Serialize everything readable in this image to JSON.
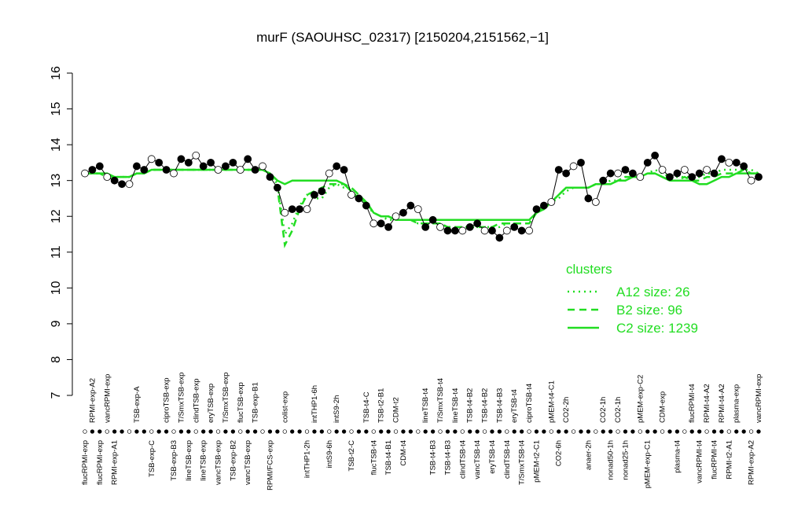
{
  "chart_data": {
    "type": "line",
    "title": "murF (SAOUHSC_02317) [2150204,2151562,−1]",
    "ylim": [
      7,
      16
    ],
    "yticks": [
      7,
      8,
      9,
      10,
      11,
      12,
      13,
      14,
      15,
      16
    ],
    "categories": [
      "flucRPMI-exp",
      "RPMI-exp-A2",
      "flucRPMI-exp",
      "vancRPMI-exp",
      "RPMI-exp-A1",
      null,
      null,
      "TSB-exp-A",
      null,
      "TSB-exp-C",
      null,
      "ciproTSB-exp",
      "TSB-exp-B3",
      "T/SmxTSB-exp",
      "lineTSB-exp",
      "clindTSB-exp",
      "lineTSB-exp",
      "eryTSB-exp",
      "vancTSB-exp",
      "T/SmxTSB-exp",
      "TSB-exp-B2",
      "flucTSB-exp",
      "vancTSB-exp",
      "TSB-exp-B1",
      null,
      "RPMI/FCS-exp",
      null,
      "colist-exp",
      null,
      null,
      "intTHP1-2h",
      "intTHP1-6h",
      null,
      "intS9-6h",
      "intS9-2h",
      null,
      "TSB-t2-C",
      null,
      "TSB-t4-C",
      "flucTSB-t4",
      "TSB-t2-B1",
      "TSB-t4-B1",
      "CDM-t2",
      "CDM-t4",
      null,
      null,
      "lineTSB-t4",
      "TSB-t4-B3",
      "T/SmxTSB-t4",
      "TSB-t4-B3",
      "lineTSB-t4",
      "clindTSB-t4",
      "TSB-t4-B2",
      "vancTSB-t4",
      "TSB-t4-B2",
      "eryTSB-t4",
      "TSB-t4-B3",
      "clindTSB-t4",
      "eryTSB-t4",
      "T/SmxTSB-t4",
      "ciproTSB-t4",
      "pMEM-t2-C1",
      null,
      "pMEM-t4-C1",
      "CO2-6h",
      "CO2-2h",
      null,
      null,
      "anaer-2h",
      null,
      "CO2-1h",
      "nonad50-1h",
      "CO2-1h",
      "nonad25-1h",
      null,
      "pMEM-exp-C2",
      "pMEM-exp-C1",
      null,
      "CDM-exp",
      null,
      "plasma-t4",
      null,
      "flucRPMI-t4",
      "vancRPMI-t4",
      "RPMI-t4-A2",
      "flucRPMI-t4",
      "RPMI-t4-A2",
      "RPMI-t2-A1",
      "plasma-exp",
      null,
      "RPMI-exp-A2",
      "vancRPMI-exp"
    ],
    "values": [
      13.2,
      13.3,
      13.4,
      13.1,
      13.0,
      12.9,
      12.9,
      13.4,
      13.3,
      13.6,
      13.5,
      13.3,
      13.2,
      13.6,
      13.5,
      13.7,
      13.4,
      13.5,
      13.3,
      13.4,
      13.5,
      13.3,
      13.6,
      13.3,
      13.4,
      13.1,
      12.8,
      12.1,
      12.2,
      12.2,
      12.2,
      12.6,
      12.7,
      13.2,
      13.4,
      13.3,
      12.6,
      12.5,
      12.3,
      11.8,
      11.8,
      11.7,
      12.0,
      12.1,
      12.3,
      12.2,
      11.7,
      11.9,
      11.7,
      11.6,
      11.6,
      11.6,
      11.7,
      11.8,
      11.6,
      11.6,
      11.4,
      11.6,
      11.7,
      11.6,
      11.6,
      12.2,
      12.3,
      12.4,
      13.3,
      13.2,
      13.4,
      13.5,
      12.5,
      12.4,
      13.0,
      13.2,
      13.2,
      13.3,
      13.2,
      13.1,
      13.5,
      13.7,
      13.3,
      13.1,
      13.2,
      13.3,
      13.1,
      13.2,
      13.3,
      13.2,
      13.6,
      13.5,
      13.5,
      13.4,
      13.0,
      13.1
    ],
    "color": "#000000",
    "legend_title": "clusters",
    "series": [
      {
        "name": "A12 size: 26",
        "style": "dotted",
        "color": "#22dd22",
        "values": [
          13.2,
          13.2,
          13.2,
          13.1,
          13.1,
          13.1,
          13.1,
          13.2,
          13.2,
          13.3,
          13.3,
          13.3,
          13.3,
          13.3,
          13.3,
          13.3,
          13.3,
          13.3,
          13.3,
          13.3,
          13.3,
          13.3,
          13.3,
          13.3,
          13.3,
          13.2,
          12.9,
          11.5,
          11.8,
          12.3,
          12.6,
          12.5,
          12.5,
          12.8,
          12.9,
          12.8,
          12.8,
          12.6,
          12.3,
          12.1,
          12.0,
          11.9,
          11.9,
          11.9,
          11.9,
          11.8,
          11.8,
          11.8,
          11.8,
          11.7,
          11.7,
          11.7,
          11.7,
          11.7,
          11.7,
          11.7,
          11.7,
          11.8,
          11.8,
          11.8,
          11.8,
          12.1,
          12.3,
          12.4,
          12.5,
          12.7,
          12.8,
          12.8,
          12.8,
          12.9,
          12.9,
          13.0,
          13.0,
          13.1,
          13.1,
          13.1,
          13.2,
          13.3,
          13.2,
          13.1,
          13.1,
          13.1,
          13.1,
          13.1,
          13.2,
          13.2,
          13.3,
          13.3,
          13.3,
          13.3,
          13.3,
          13.2
        ]
      },
      {
        "name": "B2 size: 96",
        "style": "dashed",
        "color": "#22dd22",
        "values": [
          13.2,
          13.2,
          13.2,
          13.1,
          13.1,
          13.1,
          13.1,
          13.2,
          13.2,
          13.3,
          13.3,
          13.3,
          13.3,
          13.3,
          13.3,
          13.3,
          13.3,
          13.3,
          13.3,
          13.3,
          13.3,
          13.3,
          13.3,
          13.3,
          13.3,
          13.2,
          12.8,
          11.2,
          11.6,
          12.2,
          12.6,
          12.7,
          12.8,
          12.9,
          12.9,
          12.9,
          12.8,
          12.6,
          12.4,
          12.1,
          12.0,
          12.0,
          11.9,
          11.9,
          11.9,
          11.8,
          11.8,
          11.8,
          11.8,
          11.7,
          11.7,
          11.7,
          11.7,
          11.7,
          11.7,
          11.7,
          11.8,
          11.8,
          11.8,
          11.8,
          11.8,
          12.1,
          12.2,
          12.4,
          12.6,
          12.8,
          12.8,
          12.8,
          12.8,
          12.9,
          12.9,
          12.9,
          13.0,
          13.1,
          13.1,
          13.1,
          13.2,
          13.2,
          13.1,
          13.0,
          13.0,
          13.1,
          13.0,
          13.0,
          13.1,
          13.1,
          13.2,
          13.2,
          13.2,
          13.3,
          13.2,
          13.2
        ]
      },
      {
        "name": "C2 size: 1239",
        "style": "solid",
        "color": "#22dd22",
        "values": [
          13.2,
          13.2,
          13.2,
          13.2,
          13.1,
          13.1,
          13.1,
          13.2,
          13.2,
          13.3,
          13.3,
          13.3,
          13.3,
          13.3,
          13.3,
          13.3,
          13.3,
          13.3,
          13.3,
          13.3,
          13.3,
          13.3,
          13.3,
          13.3,
          13.3,
          13.2,
          13.0,
          12.9,
          13.0,
          13.0,
          13.0,
          13.0,
          13.0,
          13.0,
          13.0,
          12.9,
          12.7,
          12.5,
          12.4,
          12.1,
          12.0,
          12.0,
          11.9,
          11.9,
          11.9,
          11.9,
          11.9,
          11.9,
          11.9,
          11.9,
          11.9,
          11.9,
          11.9,
          11.9,
          11.9,
          11.9,
          11.9,
          11.9,
          11.9,
          11.9,
          11.9,
          12.1,
          12.2,
          12.4,
          12.6,
          12.8,
          12.8,
          12.8,
          12.8,
          12.9,
          12.9,
          12.9,
          13.0,
          13.0,
          13.1,
          13.1,
          13.2,
          13.2,
          13.1,
          13.0,
          13.0,
          13.0,
          13.0,
          12.9,
          12.9,
          13.0,
          13.1,
          13.1,
          13.2,
          13.2,
          13.2,
          13.2
        ]
      }
    ]
  }
}
